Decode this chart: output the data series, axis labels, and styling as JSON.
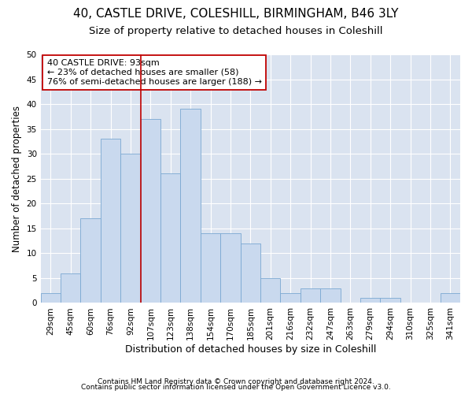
{
  "title1": "40, CASTLE DRIVE, COLESHILL, BIRMINGHAM, B46 3LY",
  "title2": "Size of property relative to detached houses in Coleshill",
  "xlabel": "Distribution of detached houses by size in Coleshill",
  "ylabel": "Number of detached properties",
  "categories": [
    "29sqm",
    "45sqm",
    "60sqm",
    "76sqm",
    "92sqm",
    "107sqm",
    "123sqm",
    "138sqm",
    "154sqm",
    "170sqm",
    "185sqm",
    "201sqm",
    "216sqm",
    "232sqm",
    "247sqm",
    "263sqm",
    "279sqm",
    "294sqm",
    "310sqm",
    "325sqm",
    "341sqm"
  ],
  "values": [
    2,
    6,
    17,
    33,
    30,
    37,
    26,
    39,
    14,
    14,
    12,
    5,
    2,
    3,
    3,
    0,
    1,
    1,
    0,
    0,
    2
  ],
  "bar_color": "#c9d9ee",
  "bar_edge_color": "#7aa8d2",
  "vline_color": "#c00000",
  "annotation_text": "40 CASTLE DRIVE: 93sqm\n← 23% of detached houses are smaller (58)\n76% of semi-detached houses are larger (188) →",
  "annotation_box_color": "#c00000",
  "fig_background_color": "#ffffff",
  "plot_bg_color": "#dae3f0",
  "grid_color": "#ffffff",
  "ylim": [
    0,
    50
  ],
  "yticks": [
    0,
    5,
    10,
    15,
    20,
    25,
    30,
    35,
    40,
    45,
    50
  ],
  "footnote1": "Contains HM Land Registry data © Crown copyright and database right 2024.",
  "footnote2": "Contains public sector information licensed under the Open Government Licence v3.0.",
  "title1_fontsize": 11,
  "title2_fontsize": 9.5,
  "xlabel_fontsize": 9,
  "ylabel_fontsize": 8.5,
  "tick_fontsize": 7.5,
  "annotation_fontsize": 8,
  "footnote_fontsize": 6.5
}
